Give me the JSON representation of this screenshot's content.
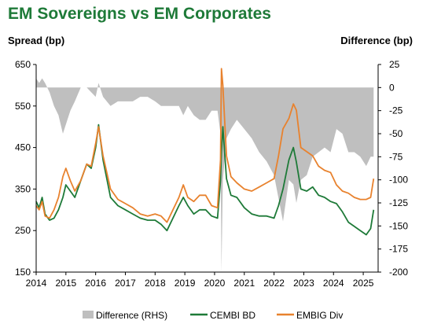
{
  "chart_data": {
    "type": "line",
    "title": "EM Sovereigns vs EM Corporates",
    "ylabel": "Spread (bp)",
    "y2label": "Difference (bp)",
    "ylim": [
      150,
      650
    ],
    "y2lim": [
      -200,
      25
    ],
    "xlim": [
      2014,
      2025.5
    ],
    "y_ticks": [
      650,
      550,
      450,
      350,
      250,
      150
    ],
    "y2_ticks": [
      25,
      0,
      -25,
      -50,
      -75,
      -100,
      -125,
      -150,
      -175,
      -200
    ],
    "x_ticks": [
      "2014",
      "2015",
      "2016",
      "2017",
      "2018",
      "2019",
      "2020",
      "2021",
      "2022",
      "2023",
      "2024",
      "2025"
    ],
    "grid": false,
    "legend_position": "bottom",
    "colors": {
      "difference": "#bfbfbf",
      "cembi": "#1e7a38",
      "embig": "#e8822e"
    },
    "series": [
      {
        "name": "CEMBI BD",
        "axis": "left",
        "x": [
          2014.0,
          2014.1,
          2014.2,
          2014.3,
          2014.45,
          2014.6,
          2014.75,
          2014.9,
          2015.0,
          2015.15,
          2015.3,
          2015.5,
          2015.7,
          2015.85,
          2016.0,
          2016.1,
          2016.25,
          2016.5,
          2016.75,
          2017.0,
          2017.25,
          2017.5,
          2017.75,
          2018.0,
          2018.2,
          2018.4,
          2018.6,
          2018.8,
          2018.95,
          2019.1,
          2019.3,
          2019.5,
          2019.7,
          2019.9,
          2020.1,
          2020.2,
          2020.23,
          2020.28,
          2020.4,
          2020.55,
          2020.75,
          2021.0,
          2021.25,
          2021.5,
          2021.75,
          2022.0,
          2022.15,
          2022.3,
          2022.5,
          2022.65,
          2022.75,
          2022.9,
          2023.1,
          2023.3,
          2023.5,
          2023.7,
          2023.9,
          2024.1,
          2024.3,
          2024.5,
          2024.7,
          2024.9,
          2025.1,
          2025.25,
          2025.35
        ],
        "values": [
          320,
          305,
          330,
          290,
          275,
          280,
          300,
          330,
          360,
          345,
          330,
          370,
          410,
          400,
          450,
          505,
          420,
          330,
          310,
          300,
          290,
          280,
          275,
          275,
          265,
          250,
          280,
          310,
          330,
          310,
          290,
          300,
          300,
          285,
          280,
          370,
          440,
          500,
          375,
          335,
          330,
          305,
          290,
          285,
          285,
          280,
          310,
          350,
          420,
          450,
          415,
          350,
          345,
          355,
          335,
          330,
          320,
          315,
          295,
          270,
          260,
          250,
          240,
          255,
          300
        ]
      },
      {
        "name": "EMBIG Div",
        "axis": "left",
        "x": [
          2014.0,
          2014.1,
          2014.2,
          2014.3,
          2014.45,
          2014.6,
          2014.75,
          2014.9,
          2015.0,
          2015.15,
          2015.3,
          2015.5,
          2015.7,
          2015.85,
          2016.0,
          2016.1,
          2016.25,
          2016.5,
          2016.75,
          2017.0,
          2017.25,
          2017.5,
          2017.75,
          2018.0,
          2018.2,
          2018.4,
          2018.6,
          2018.8,
          2018.95,
          2019.1,
          2019.3,
          2019.5,
          2019.7,
          2019.9,
          2020.1,
          2020.2,
          2020.23,
          2020.28,
          2020.4,
          2020.55,
          2020.75,
          2021.0,
          2021.25,
          2021.5,
          2021.75,
          2022.0,
          2022.15,
          2022.3,
          2022.5,
          2022.65,
          2022.75,
          2022.9,
          2023.1,
          2023.3,
          2023.5,
          2023.7,
          2023.9,
          2024.1,
          2024.3,
          2024.5,
          2024.7,
          2024.9,
          2025.1,
          2025.25,
          2025.35
        ],
        "values": [
          310,
          300,
          320,
          285,
          280,
          300,
          330,
          380,
          400,
          370,
          345,
          370,
          410,
          405,
          460,
          500,
          430,
          350,
          325,
          315,
          305,
          290,
          285,
          290,
          285,
          270,
          300,
          330,
          360,
          330,
          320,
          335,
          335,
          310,
          305,
          420,
          640,
          600,
          430,
          380,
          365,
          350,
          345,
          355,
          365,
          375,
          430,
          495,
          520,
          555,
          540,
          450,
          440,
          430,
          405,
          395,
          390,
          360,
          345,
          340,
          330,
          325,
          325,
          330,
          375
        ]
      },
      {
        "name": "Difference (RHS)",
        "axis": "right",
        "type": "area",
        "x": [
          2014.0,
          2014.1,
          2014.2,
          2014.3,
          2014.45,
          2014.6,
          2014.75,
          2014.9,
          2015.0,
          2015.15,
          2015.3,
          2015.5,
          2015.7,
          2015.85,
          2016.0,
          2016.1,
          2016.25,
          2016.5,
          2016.75,
          2017.0,
          2017.25,
          2017.5,
          2017.75,
          2018.0,
          2018.2,
          2018.4,
          2018.6,
          2018.8,
          2018.95,
          2019.1,
          2019.3,
          2019.5,
          2019.7,
          2019.9,
          2020.1,
          2020.2,
          2020.23,
          2020.28,
          2020.4,
          2020.55,
          2020.75,
          2021.0,
          2021.25,
          2021.5,
          2021.75,
          2022.0,
          2022.15,
          2022.3,
          2022.5,
          2022.65,
          2022.75,
          2022.9,
          2023.1,
          2023.3,
          2023.5,
          2023.7,
          2023.9,
          2024.1,
          2024.3,
          2024.5,
          2024.7,
          2024.9,
          2025.1,
          2025.25,
          2025.35
        ],
        "values": [
          10,
          5,
          10,
          5,
          -5,
          -20,
          -30,
          -50,
          -40,
          -25,
          -15,
          0,
          0,
          -5,
          -10,
          5,
          -10,
          -20,
          -15,
          -15,
          -15,
          -10,
          -10,
          -15,
          -20,
          -20,
          -20,
          -20,
          -30,
          -20,
          -30,
          -35,
          -35,
          -25,
          -25,
          -50,
          -200,
          -100,
          -55,
          -45,
          -35,
          -45,
          -55,
          -70,
          -80,
          -95,
          -120,
          -145,
          -100,
          -105,
          -125,
          -100,
          -95,
          -75,
          -70,
          -65,
          -70,
          -45,
          -50,
          -70,
          -70,
          -75,
          -85,
          -75,
          -75
        ]
      }
    ]
  }
}
